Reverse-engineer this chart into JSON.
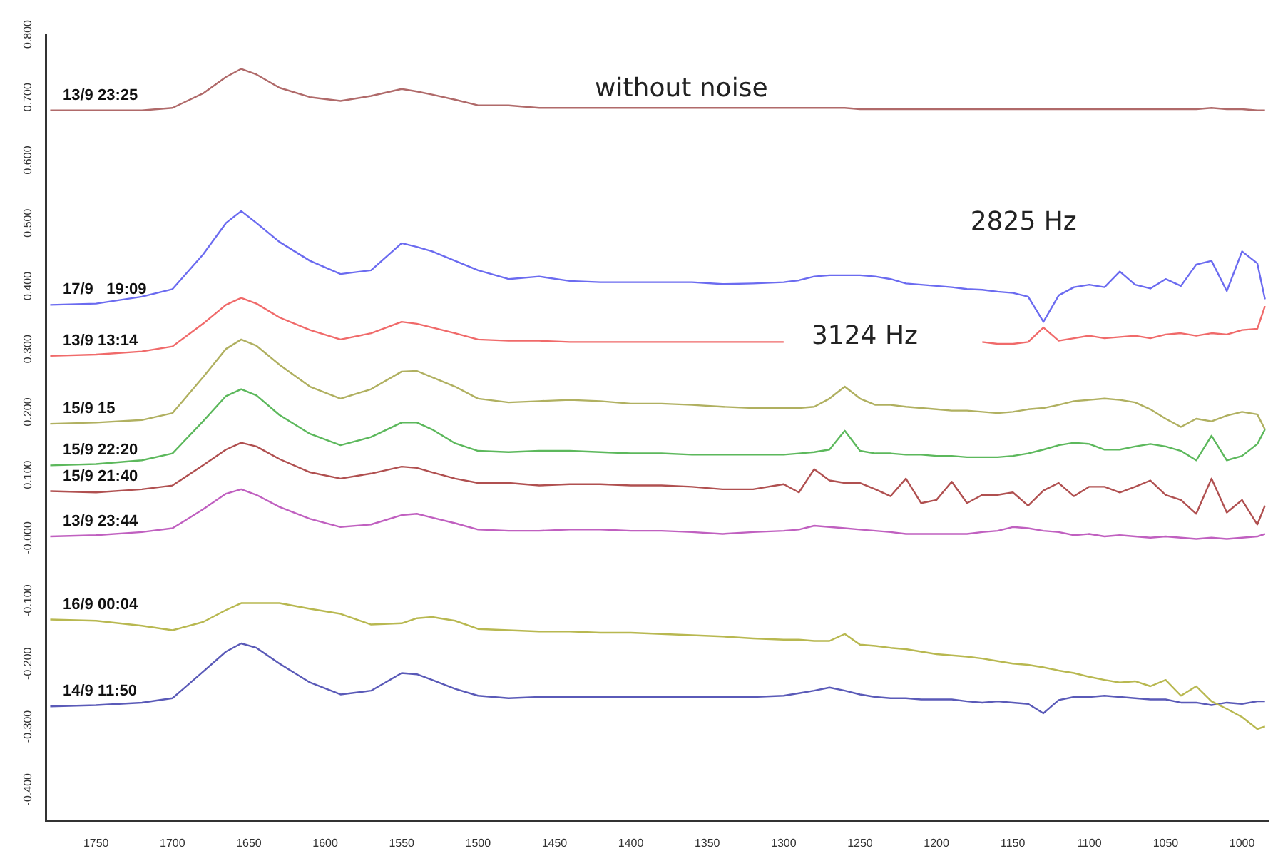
{
  "chart_data": {
    "type": "line",
    "x": [
      1780,
      1750,
      1720,
      1700,
      1680,
      1665,
      1655,
      1645,
      1630,
      1610,
      1590,
      1570,
      1550,
      1540,
      1530,
      1515,
      1500,
      1480,
      1460,
      1440,
      1420,
      1400,
      1380,
      1360,
      1340,
      1320,
      1300,
      1290,
      1280,
      1270,
      1260,
      1250,
      1240,
      1230,
      1220,
      1210,
      1200,
      1190,
      1180,
      1170,
      1160,
      1150,
      1140,
      1130,
      1120,
      1110,
      1100,
      1090,
      1080,
      1070,
      1060,
      1050,
      1040,
      1030,
      1020,
      1010,
      1000,
      990,
      985
    ],
    "xlim": [
      1783,
      983
    ],
    "xticks": [
      1750,
      1700,
      1650,
      1600,
      1550,
      1500,
      1450,
      1400,
      1350,
      1300,
      1250,
      1200,
      1150,
      1100,
      1050,
      1000
    ],
    "ylim": [
      -0.45,
      0.8
    ],
    "yticks": [
      {
        "value": 0.8,
        "label": "0.800"
      },
      {
        "value": 0.7,
        "label": "0.700"
      },
      {
        "value": 0.6,
        "label": "0.600"
      },
      {
        "value": 0.5,
        "label": "0.500"
      },
      {
        "value": 0.4,
        "label": "0.400"
      },
      {
        "value": 0.3,
        "label": "0.300"
      },
      {
        "value": 0.2,
        "label": "0.200"
      },
      {
        "value": 0.1,
        "label": "0.100"
      },
      {
        "value": 0,
        "label": "-0.000"
      },
      {
        "value": -0.1,
        "label": "-0.100"
      },
      {
        "value": -0.2,
        "label": "-0.200"
      },
      {
        "value": -0.3,
        "label": "-0.300"
      },
      {
        "value": -0.4,
        "label": "-0.400"
      }
    ],
    "annotations": [
      "without noise",
      "2825 Hz",
      "3124 Hz"
    ],
    "series": [
      {
        "name": "13/9 23:25",
        "color": "#b06a6a",
        "values": [
          0.679,
          0.679,
          0.679,
          0.683,
          0.706,
          0.732,
          0.745,
          0.736,
          0.715,
          0.7,
          0.694,
          0.702,
          0.713,
          0.709,
          0.704,
          0.696,
          0.687,
          0.687,
          0.683,
          0.683,
          0.683,
          0.683,
          0.683,
          0.683,
          0.683,
          0.683,
          0.683,
          0.683,
          0.683,
          0.683,
          0.683,
          0.681,
          0.681,
          0.681,
          0.681,
          0.681,
          0.681,
          0.681,
          0.681,
          0.681,
          0.681,
          0.681,
          0.681,
          0.681,
          0.681,
          0.681,
          0.681,
          0.681,
          0.681,
          0.681,
          0.681,
          0.681,
          0.681,
          0.681,
          0.683,
          0.681,
          0.681,
          0.679,
          0.679
        ]
      },
      {
        "name": "17/9   19:09",
        "color": "#6b6bf0",
        "values": [
          0.37,
          0.372,
          0.383,
          0.395,
          0.45,
          0.5,
          0.519,
          0.5,
          0.47,
          0.44,
          0.419,
          0.425,
          0.468,
          0.462,
          0.455,
          0.44,
          0.425,
          0.411,
          0.415,
          0.408,
          0.406,
          0.406,
          0.406,
          0.406,
          0.403,
          0.404,
          0.406,
          0.409,
          0.415,
          0.417,
          0.417,
          0.417,
          0.415,
          0.411,
          0.404,
          0.402,
          0.4,
          0.398,
          0.395,
          0.394,
          0.391,
          0.389,
          0.383,
          0.343,
          0.385,
          0.398,
          0.402,
          0.398,
          0.423,
          0.402,
          0.396,
          0.411,
          0.4,
          0.434,
          0.44,
          0.392,
          0.455,
          0.436,
          0.379
        ]
      },
      {
        "name": "13/9 13:14",
        "color": "#f06a6a",
        "values": [
          0.289,
          0.291,
          0.296,
          0.304,
          0.34,
          0.37,
          0.381,
          0.372,
          0.35,
          0.33,
          0.315,
          0.325,
          0.343,
          0.34,
          0.334,
          0.325,
          0.315,
          0.313,
          0.313,
          0.311,
          0.311,
          0.311,
          0.311,
          0.311,
          0.311,
          0.311,
          0.311,
          null,
          null,
          null,
          null,
          null,
          null,
          null,
          null,
          null,
          null,
          null,
          null,
          0.311,
          0.308,
          0.308,
          0.311,
          0.334,
          0.313,
          0.317,
          0.321,
          0.317,
          0.319,
          0.321,
          0.317,
          0.323,
          0.325,
          0.321,
          0.325,
          0.323,
          0.33,
          0.332,
          0.368
        ]
      },
      {
        "name": "15/9 15",
        "color": "#b0b060",
        "values": [
          0.181,
          0.183,
          0.187,
          0.198,
          0.255,
          0.3,
          0.315,
          0.305,
          0.275,
          0.24,
          0.221,
          0.236,
          0.264,
          0.265,
          0.255,
          0.24,
          0.221,
          0.215,
          0.217,
          0.219,
          0.217,
          0.213,
          0.213,
          0.211,
          0.208,
          0.206,
          0.206,
          0.206,
          0.208,
          0.221,
          0.24,
          0.221,
          0.211,
          0.211,
          0.208,
          0.206,
          0.204,
          0.202,
          0.202,
          0.2,
          0.198,
          0.2,
          0.204,
          0.206,
          0.211,
          0.217,
          0.219,
          0.221,
          0.219,
          0.215,
          0.204,
          0.189,
          0.176,
          0.189,
          0.185,
          0.194,
          0.2,
          0.196,
          0.172
        ]
      },
      {
        "name": "15/9 22:20",
        "color": "#5cb85c",
        "values": [
          0.115,
          0.117,
          0.123,
          0.134,
          0.185,
          0.225,
          0.236,
          0.226,
          0.195,
          0.165,
          0.147,
          0.16,
          0.183,
          0.183,
          0.172,
          0.15,
          0.138,
          0.136,
          0.138,
          0.138,
          0.136,
          0.134,
          0.134,
          0.132,
          0.132,
          0.132,
          0.132,
          0.134,
          0.136,
          0.14,
          0.17,
          0.138,
          0.134,
          0.134,
          0.132,
          0.132,
          0.13,
          0.13,
          0.128,
          0.128,
          0.128,
          0.13,
          0.134,
          0.14,
          0.147,
          0.151,
          0.149,
          0.14,
          0.14,
          0.145,
          0.149,
          0.145,
          0.138,
          0.123,
          0.162,
          0.123,
          0.13,
          0.149,
          0.172
        ]
      },
      {
        "name": "15/9 21:40",
        "color": "#b05050",
        "values": [
          0.074,
          0.072,
          0.077,
          0.083,
          0.115,
          0.14,
          0.151,
          0.145,
          0.125,
          0.104,
          0.094,
          0.102,
          0.113,
          0.111,
          0.104,
          0.094,
          0.087,
          0.087,
          0.083,
          0.085,
          0.085,
          0.083,
          0.083,
          0.081,
          0.077,
          0.077,
          0.085,
          0.072,
          0.109,
          0.091,
          0.087,
          0.087,
          0.077,
          0.066,
          0.094,
          0.055,
          0.06,
          0.089,
          0.055,
          0.068,
          0.068,
          0.072,
          0.051,
          0.075,
          0.087,
          0.066,
          0.081,
          0.081,
          0.072,
          0.081,
          0.091,
          0.068,
          0.06,
          0.038,
          0.094,
          0.04,
          0.06,
          0.021,
          0.051
        ]
      },
      {
        "name": "13/9 23:44",
        "color": "#c060c0",
        "values": [
          0.002,
          0.004,
          0.009,
          0.015,
          0.045,
          0.07,
          0.077,
          0.068,
          0.049,
          0.03,
          0.017,
          0.021,
          0.036,
          0.038,
          0.032,
          0.023,
          0.013,
          0.011,
          0.011,
          0.013,
          0.013,
          0.011,
          0.011,
          0.009,
          0.006,
          0.009,
          0.011,
          0.013,
          0.019,
          0.017,
          0.015,
          0.013,
          0.011,
          0.009,
          0.006,
          0.006,
          0.006,
          0.006,
          0.006,
          0.009,
          0.011,
          0.017,
          0.015,
          0.011,
          0.009,
          0.004,
          0.006,
          0.002,
          0.004,
          0.002,
          0,
          0.002,
          0,
          -0.002,
          0,
          -0.002,
          0,
          0.002,
          0.006
        ]
      },
      {
        "name": "16/9 00:04",
        "color": "#b8b850",
        "values": [
          -0.13,
          -0.132,
          -0.14,
          -0.147,
          -0.134,
          -0.115,
          -0.104,
          -0.104,
          -0.104,
          -0.113,
          -0.121,
          -0.138,
          -0.136,
          -0.128,
          -0.126,
          -0.132,
          -0.145,
          -0.147,
          -0.149,
          -0.149,
          -0.151,
          -0.151,
          -0.153,
          -0.155,
          -0.157,
          -0.16,
          -0.162,
          -0.162,
          -0.164,
          -0.164,
          -0.153,
          -0.17,
          -0.172,
          -0.175,
          -0.177,
          -0.181,
          -0.185,
          -0.187,
          -0.189,
          -0.192,
          -0.196,
          -0.2,
          -0.202,
          -0.206,
          -0.211,
          -0.215,
          -0.221,
          -0.226,
          -0.23,
          -0.228,
          -0.236,
          -0.226,
          -0.251,
          -0.236,
          -0.26,
          -0.272,
          -0.285,
          -0.304,
          -0.3
        ]
      },
      {
        "name": "14/9 11:50",
        "color": "#5a5ab8",
        "values": [
          -0.268,
          -0.266,
          -0.262,
          -0.255,
          -0.213,
          -0.181,
          -0.168,
          -0.175,
          -0.2,
          -0.23,
          -0.249,
          -0.243,
          -0.215,
          -0.217,
          -0.226,
          -0.24,
          -0.251,
          -0.255,
          -0.253,
          -0.253,
          -0.253,
          -0.253,
          -0.253,
          -0.253,
          -0.253,
          -0.253,
          -0.251,
          -0.247,
          -0.243,
          -0.238,
          -0.243,
          -0.249,
          -0.253,
          -0.255,
          -0.255,
          -0.257,
          -0.257,
          -0.257,
          -0.26,
          -0.262,
          -0.26,
          -0.262,
          -0.264,
          -0.279,
          -0.258,
          -0.253,
          -0.253,
          -0.251,
          -0.253,
          -0.255,
          -0.257,
          -0.257,
          -0.262,
          -0.262,
          -0.266,
          -0.262,
          -0.264,
          -0.26,
          -0.26
        ]
      }
    ]
  }
}
